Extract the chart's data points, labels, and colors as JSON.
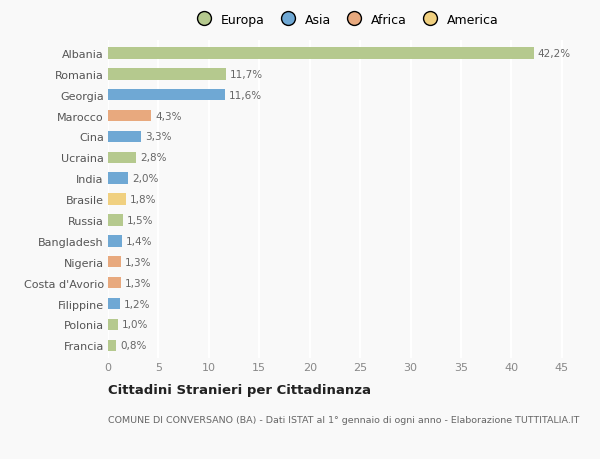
{
  "categories": [
    "Albania",
    "Romania",
    "Georgia",
    "Marocco",
    "Cina",
    "Ucraina",
    "India",
    "Brasile",
    "Russia",
    "Bangladesh",
    "Nigeria",
    "Costa d'Avorio",
    "Filippine",
    "Polonia",
    "Francia"
  ],
  "values": [
    42.2,
    11.7,
    11.6,
    4.3,
    3.3,
    2.8,
    2.0,
    1.8,
    1.5,
    1.4,
    1.3,
    1.3,
    1.2,
    1.0,
    0.8
  ],
  "labels": [
    "42,2%",
    "11,7%",
    "11,6%",
    "4,3%",
    "3,3%",
    "2,8%",
    "2,0%",
    "1,8%",
    "1,5%",
    "1,4%",
    "1,3%",
    "1,3%",
    "1,2%",
    "1,0%",
    "0,8%"
  ],
  "colors": [
    "#b5c98e",
    "#b5c98e",
    "#6fa8d4",
    "#e8a97e",
    "#6fa8d4",
    "#b5c98e",
    "#6fa8d4",
    "#f0d080",
    "#b5c98e",
    "#6fa8d4",
    "#e8a97e",
    "#e8a97e",
    "#6fa8d4",
    "#b5c98e",
    "#b5c98e"
  ],
  "legend": [
    {
      "label": "Europa",
      "color": "#b5c98e"
    },
    {
      "label": "Asia",
      "color": "#6fa8d4"
    },
    {
      "label": "Africa",
      "color": "#e8a97e"
    },
    {
      "label": "America",
      "color": "#f0d080"
    }
  ],
  "xlim": [
    0,
    47
  ],
  "xticks": [
    0,
    5,
    10,
    15,
    20,
    25,
    30,
    35,
    40,
    45
  ],
  "title": "Cittadini Stranieri per Cittadinanza",
  "subtitle": "COMUNE DI CONVERSANO (BA) - Dati ISTAT al 1° gennaio di ogni anno - Elaborazione TUTTITALIA.IT",
  "bg_color": "#f9f9f9",
  "grid_color": "#ffffff",
  "label_color": "#666666",
  "bar_height": 0.55
}
